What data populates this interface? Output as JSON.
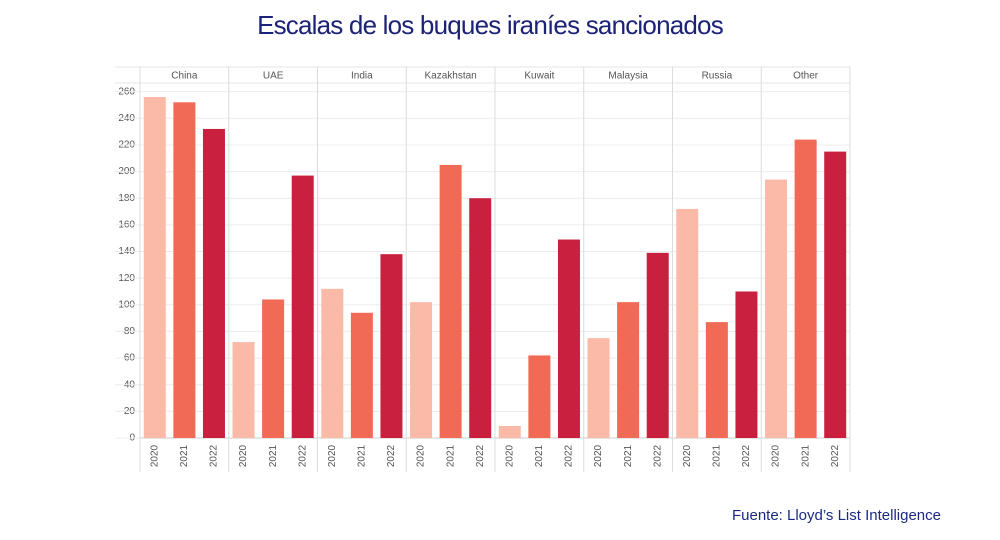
{
  "chart_data": {
    "type": "bar",
    "title": "Escalas de los buques iraníes sancionados",
    "source": "Fuente:  Lloyd’s List Intelligence",
    "categories": [
      "China",
      "UAE",
      "India",
      "Kazakhstan",
      "Kuwait",
      "Malaysia",
      "Russia",
      "Other"
    ],
    "series": [
      {
        "name": "2020",
        "color": "#fbb9a8",
        "values": [
          256,
          72,
          112,
          102,
          9,
          75,
          172,
          194
        ]
      },
      {
        "name": "2021",
        "color": "#f06a55",
        "values": [
          252,
          104,
          94,
          205,
          62,
          102,
          87,
          224
        ]
      },
      {
        "name": "2022",
        "color": "#c8203e",
        "values": [
          232,
          197,
          138,
          180,
          149,
          139,
          110,
          215
        ]
      }
    ],
    "ylim": [
      0,
      265
    ],
    "yticks": [
      0,
      20,
      40,
      60,
      80,
      100,
      120,
      140,
      160,
      180,
      200,
      220,
      240,
      260
    ],
    "grid": true
  }
}
